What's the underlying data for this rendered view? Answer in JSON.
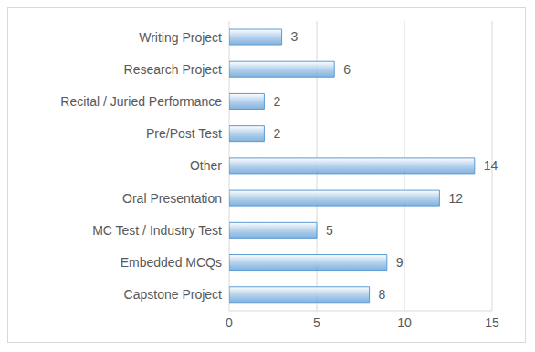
{
  "chart_data": {
    "type": "bar",
    "orientation": "horizontal",
    "categories": [
      "Writing Project",
      "Research Project",
      "Recital / Juried Performance",
      "Pre/Post Test",
      "Other",
      "Oral Presentation",
      "MC Test / Industry Test",
      "Embedded MCQs",
      "Capstone Project"
    ],
    "values": [
      3,
      6,
      2,
      2,
      14,
      12,
      5,
      9,
      8
    ],
    "color": "#5b9bd5",
    "xlim": [
      0,
      15
    ],
    "xticks": [
      0,
      5,
      10,
      15
    ],
    "grid": true,
    "data_labels": true
  }
}
